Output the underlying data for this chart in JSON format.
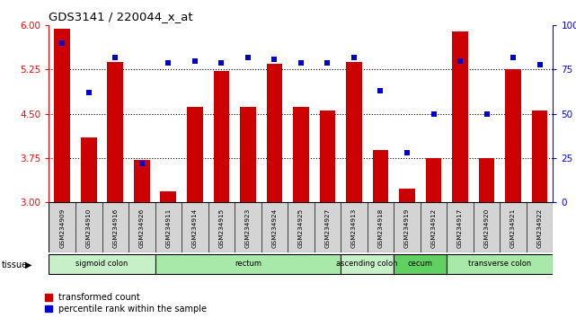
{
  "title": "GDS3141 / 220044_x_at",
  "samples": [
    "GSM234909",
    "GSM234910",
    "GSM234916",
    "GSM234926",
    "GSM234911",
    "GSM234914",
    "GSM234915",
    "GSM234923",
    "GSM234924",
    "GSM234925",
    "GSM234927",
    "GSM234913",
    "GSM234918",
    "GSM234919",
    "GSM234912",
    "GSM234917",
    "GSM234920",
    "GSM234921",
    "GSM234922"
  ],
  "bar_values": [
    5.95,
    4.1,
    5.38,
    3.72,
    3.18,
    4.62,
    5.22,
    4.62,
    5.35,
    4.62,
    4.55,
    5.38,
    3.88,
    3.22,
    3.75,
    5.9,
    3.75,
    5.25,
    4.55
  ],
  "dot_values": [
    90,
    62,
    82,
    22,
    79,
    80,
    79,
    82,
    81,
    79,
    79,
    82,
    63,
    28,
    50,
    80,
    50,
    82,
    78
  ],
  "tissues": [
    {
      "name": "sigmoid colon",
      "start": 0,
      "end": 4,
      "color": "#c8f0c8"
    },
    {
      "name": "rectum",
      "start": 4,
      "end": 11,
      "color": "#a8e8a8"
    },
    {
      "name": "ascending colon",
      "start": 11,
      "end": 13,
      "color": "#c8f0c8"
    },
    {
      "name": "cecum",
      "start": 13,
      "end": 15,
      "color": "#60d060"
    },
    {
      "name": "transverse colon",
      "start": 15,
      "end": 19,
      "color": "#a8e8a8"
    }
  ],
  "ylim_left": [
    3.0,
    6.0
  ],
  "ylim_right": [
    0,
    100
  ],
  "yticks_left": [
    3.0,
    3.75,
    4.5,
    5.25,
    6.0
  ],
  "yticks_right": [
    0,
    25,
    50,
    75,
    100
  ],
  "bar_color": "#cc0000",
  "dot_color": "#0000cc",
  "bar_bottom": 3.0,
  "grid_values": [
    3.75,
    4.5,
    5.25
  ],
  "legend_bar": "transformed count",
  "legend_dot": "percentile rank within the sample",
  "bg_color": "#ffffff",
  "sample_bg": "#d4d4d4"
}
